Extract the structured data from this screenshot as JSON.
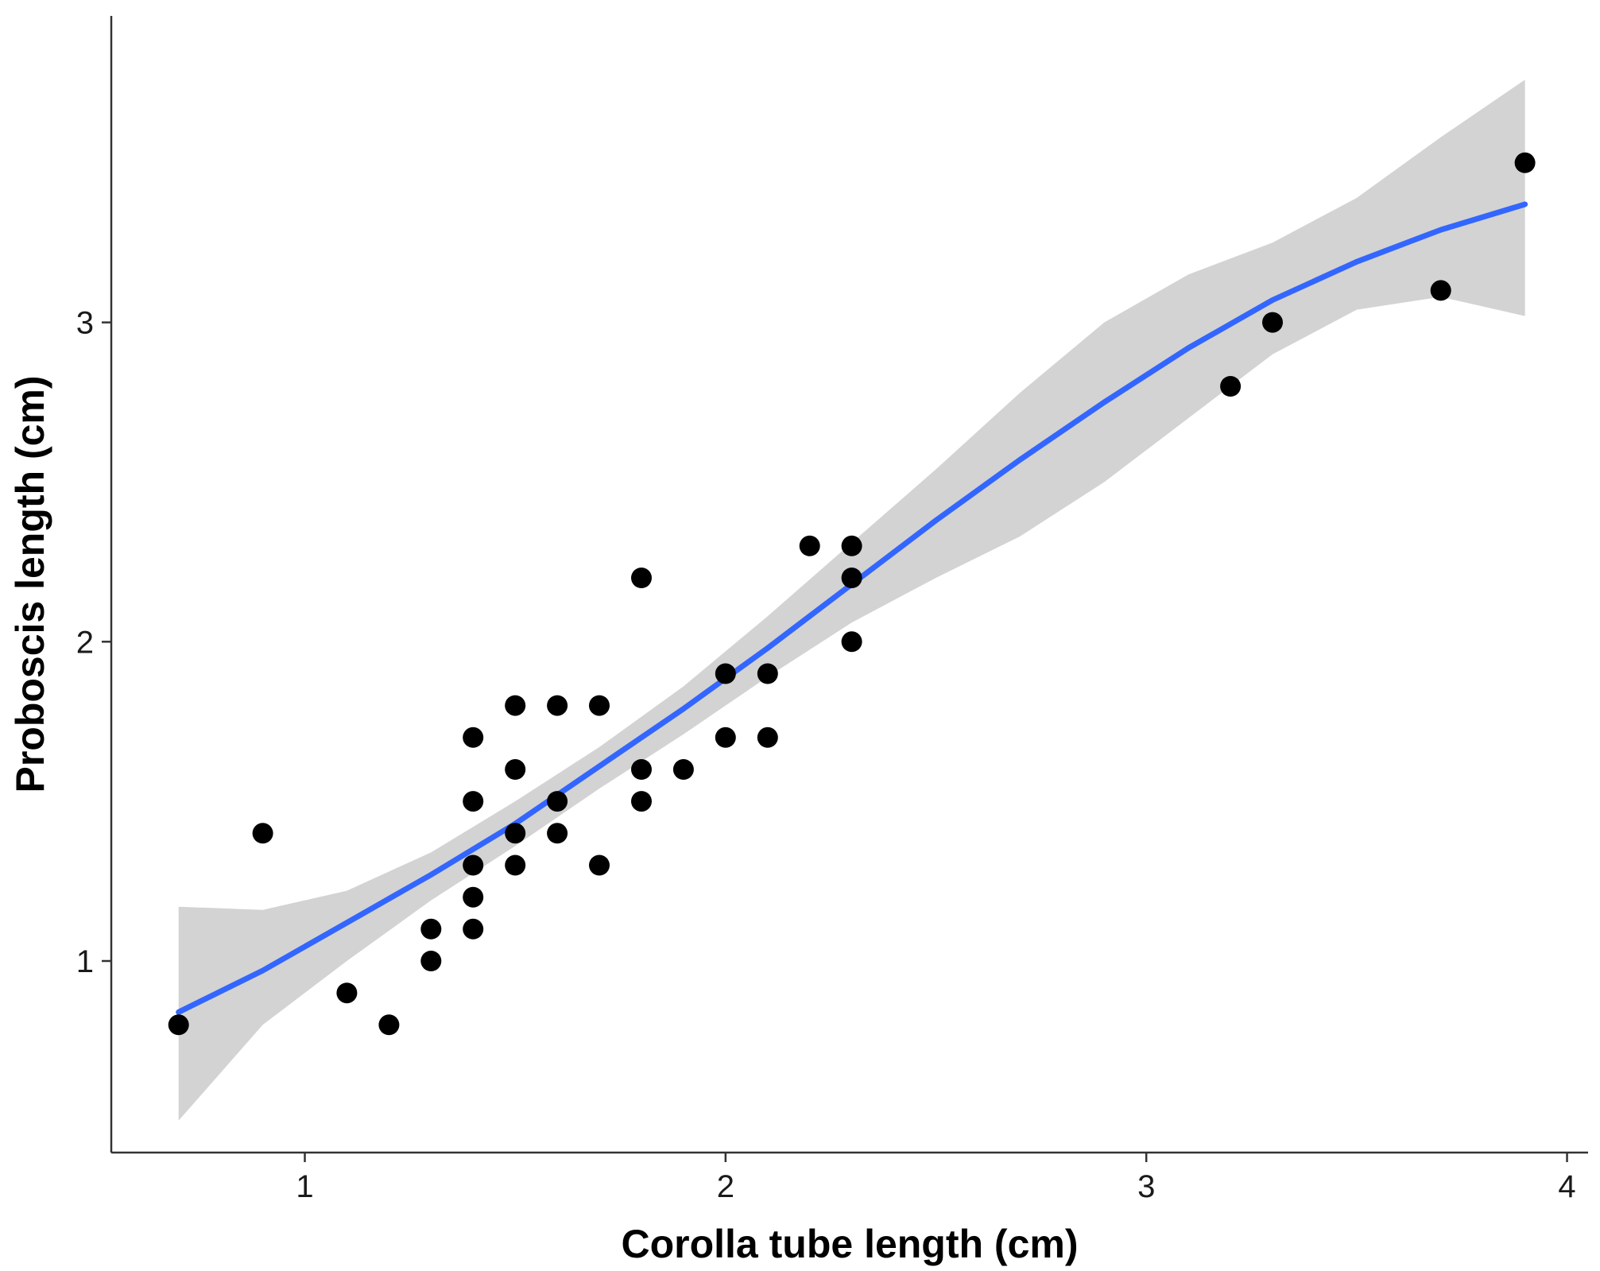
{
  "chart_data": {
    "type": "scatter",
    "title": "",
    "xlabel": "Corolla tube length (cm)",
    "ylabel": "Proboscis length (cm)",
    "xlim": [
      0.54,
      4.05
    ],
    "ylim": [
      0.4,
      3.96
    ],
    "xticks": [
      1,
      2,
      3,
      4
    ],
    "yticks": [
      1,
      2,
      3
    ],
    "grid": false,
    "legend": "none",
    "colors": {
      "points": "#000000",
      "smooth_line": "#3366ff",
      "confidence_band": "#d3d3d3",
      "axis": "#333333"
    },
    "series": [
      {
        "kind": "points",
        "x": [
          0.7,
          0.9,
          1.1,
          1.2,
          1.3,
          1.3,
          1.4,
          1.4,
          1.4,
          1.4,
          1.4,
          1.5,
          1.5,
          1.5,
          1.5,
          1.6,
          1.6,
          1.6,
          1.7,
          1.7,
          1.8,
          1.8,
          1.8,
          1.9,
          2.0,
          2.0,
          2.1,
          2.1,
          2.2,
          2.3,
          2.3,
          2.3,
          3.2,
          3.3,
          3.7,
          3.9
        ],
        "y": [
          0.8,
          1.4,
          0.9,
          0.8,
          1.0,
          1.1,
          1.1,
          1.2,
          1.3,
          1.5,
          1.7,
          1.3,
          1.4,
          1.6,
          1.8,
          1.4,
          1.5,
          1.8,
          1.3,
          1.8,
          1.5,
          1.6,
          2.2,
          1.6,
          1.7,
          1.9,
          1.7,
          1.9,
          2.3,
          2.0,
          2.2,
          2.3,
          2.8,
          3.0,
          3.1,
          3.5
        ]
      },
      {
        "kind": "smooth",
        "x": [
          0.7,
          0.9,
          1.1,
          1.3,
          1.5,
          1.7,
          1.9,
          2.1,
          2.3,
          2.5,
          2.7,
          2.9,
          3.1,
          3.3,
          3.5,
          3.7,
          3.9
        ],
        "y": [
          0.84,
          0.97,
          1.12,
          1.27,
          1.43,
          1.61,
          1.79,
          1.98,
          2.18,
          2.38,
          2.57,
          2.75,
          2.92,
          3.07,
          3.19,
          3.29,
          3.37
        ],
        "lower": [
          0.5,
          0.8,
          1.0,
          1.19,
          1.36,
          1.54,
          1.71,
          1.89,
          2.06,
          2.2,
          2.33,
          2.5,
          2.7,
          2.9,
          3.04,
          3.08,
          3.02
        ],
        "upper": [
          1.17,
          1.16,
          1.22,
          1.34,
          1.5,
          1.67,
          1.86,
          2.08,
          2.31,
          2.54,
          2.78,
          3.0,
          3.15,
          3.25,
          3.39,
          3.58,
          3.76
        ]
      }
    ]
  }
}
